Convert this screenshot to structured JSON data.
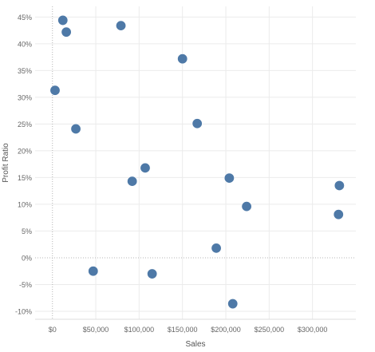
{
  "chart_data": {
    "type": "scatter",
    "title": "",
    "xlabel": "Sales",
    "ylabel": "Profit Ratio",
    "xlim": [
      -20000,
      350000
    ],
    "ylim": [
      -0.115,
      0.47
    ],
    "x_ticks": [
      0,
      50000,
      100000,
      150000,
      200000,
      250000,
      300000
    ],
    "x_tick_labels": [
      "$0",
      "$50,000",
      "$100,000",
      "$150,000",
      "$200,000",
      "$250,000",
      "$300,000"
    ],
    "y_ticks": [
      -0.1,
      -0.05,
      0.0,
      0.05,
      0.1,
      0.15,
      0.2,
      0.25,
      0.3,
      0.35,
      0.4,
      0.45
    ],
    "y_tick_labels": [
      "-10%",
      "-5%",
      "0%",
      "5%",
      "10%",
      "15%",
      "20%",
      "25%",
      "30%",
      "35%",
      "40%",
      "45%"
    ],
    "grid": true,
    "marker_color": "#4e79a7",
    "points": [
      {
        "x": 12000,
        "y": 0.444
      },
      {
        "x": 16000,
        "y": 0.422
      },
      {
        "x": 79000,
        "y": 0.434
      },
      {
        "x": 150000,
        "y": 0.372
      },
      {
        "x": 3000,
        "y": 0.313
      },
      {
        "x": 27000,
        "y": 0.241
      },
      {
        "x": 167000,
        "y": 0.251
      },
      {
        "x": 107000,
        "y": 0.168
      },
      {
        "x": 92000,
        "y": 0.143
      },
      {
        "x": 204000,
        "y": 0.149
      },
      {
        "x": 331000,
        "y": 0.135
      },
      {
        "x": 224000,
        "y": 0.096
      },
      {
        "x": 330000,
        "y": 0.081
      },
      {
        "x": 189000,
        "y": 0.018
      },
      {
        "x": 47000,
        "y": -0.025
      },
      {
        "x": 115000,
        "y": -0.03
      },
      {
        "x": 208000,
        "y": -0.086
      }
    ]
  }
}
